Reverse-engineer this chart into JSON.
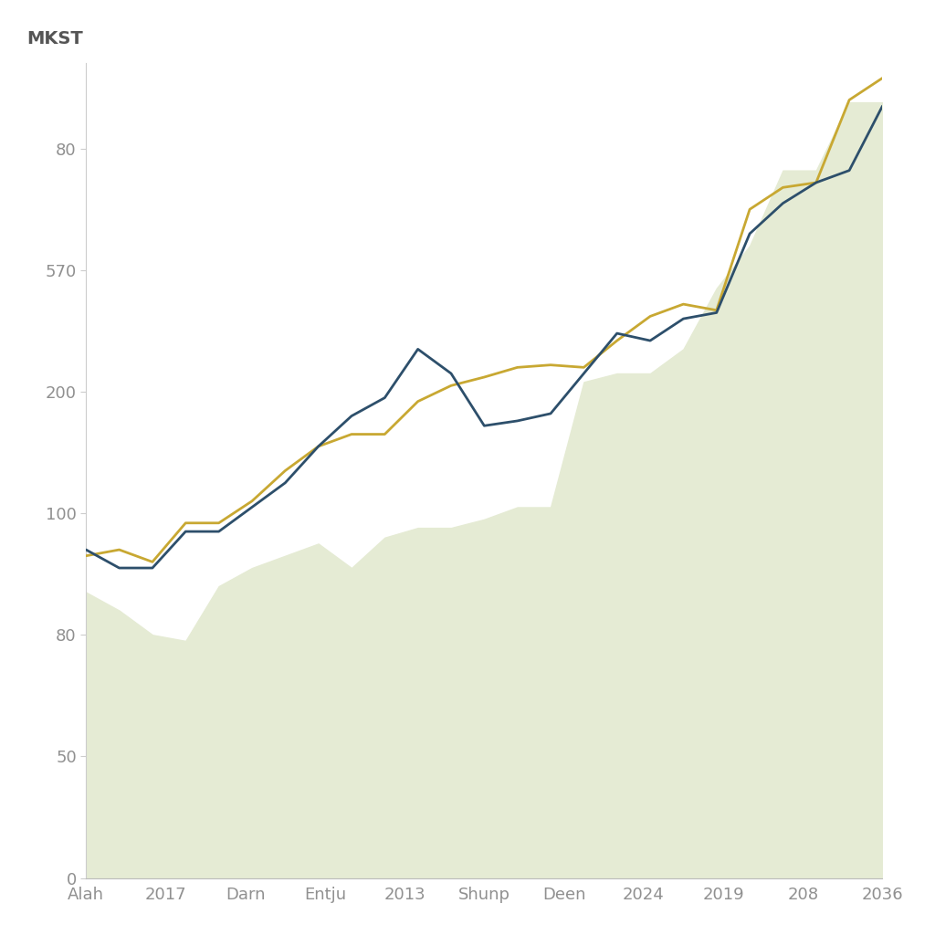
{
  "ylabel": "MKST",
  "background_color": "#ffffff",
  "x_labels": [
    "Alah",
    "2017",
    "Darn",
    "Entju",
    "2013",
    "Shunp",
    "Deen",
    "2024",
    "2019",
    "208",
    "2036"
  ],
  "ytick_labels": [
    "0",
    "50",
    "80",
    "100",
    "200",
    "570",
    "80"
  ],
  "ytick_visual_pos": [
    0,
    1,
    2,
    3,
    4,
    5,
    6
  ],
  "blue_line_color": "#2d4f6b",
  "gold_line_color": "#c8a832",
  "fill_color": "#e5ebd4",
  "line_width": 2.0,
  "blue_y_visual": [
    2.7,
    2.55,
    2.55,
    2.85,
    2.85,
    3.05,
    3.25,
    3.55,
    3.8,
    3.95,
    4.35,
    4.15,
    3.72,
    3.76,
    3.82,
    4.15,
    4.48,
    4.42,
    4.6,
    4.65,
    5.3,
    5.55,
    5.72,
    5.82,
    6.35
  ],
  "gold_y_visual": [
    2.65,
    2.7,
    2.6,
    2.92,
    2.92,
    3.1,
    3.35,
    3.55,
    3.65,
    3.65,
    3.92,
    4.05,
    4.12,
    4.2,
    4.22,
    4.2,
    4.42,
    4.62,
    4.72,
    4.67,
    5.5,
    5.68,
    5.72,
    6.4,
    6.58
  ],
  "fill_y_visual": [
    2.35,
    2.2,
    2.0,
    1.95,
    2.4,
    2.55,
    2.65,
    2.75,
    2.55,
    2.8,
    2.88,
    2.88,
    2.95,
    3.05,
    3.05,
    4.08,
    4.15,
    4.15,
    4.35,
    4.85,
    5.2,
    5.82,
    5.82,
    6.38,
    6.38
  ],
  "n_points": 25,
  "ylim_visual": [
    0,
    6.7
  ],
  "text_color": "#909090",
  "label_fontsize": 13,
  "ylabel_fontsize": 14,
  "ylabel_color": "#555555"
}
